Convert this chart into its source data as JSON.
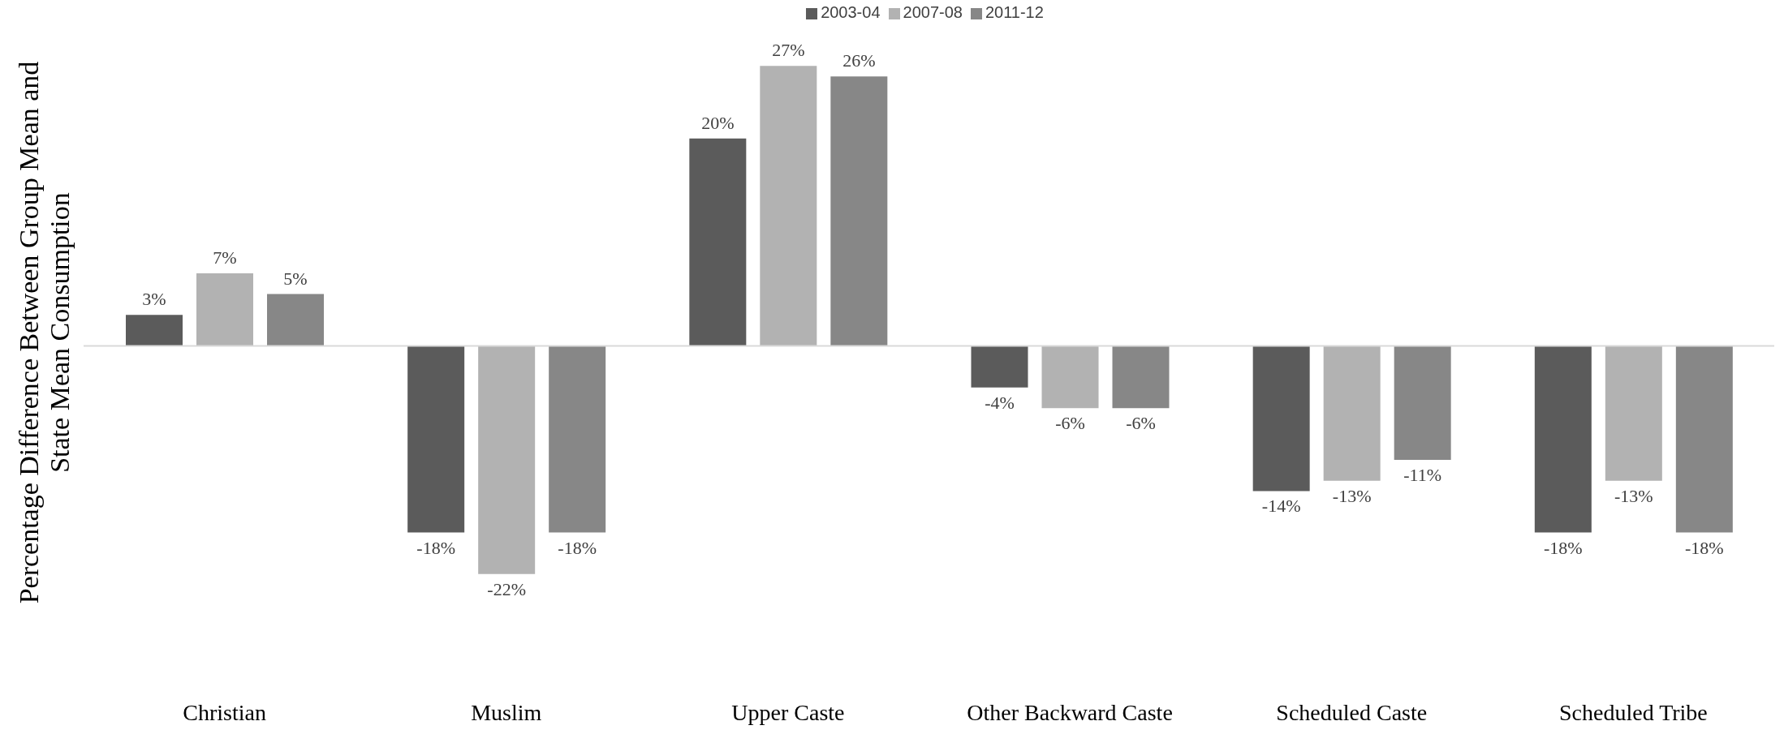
{
  "chart_data": {
    "type": "bar",
    "ylabel": "Percentage Difference Between Group Mean and State Mean Consumption",
    "categories": [
      "Christian",
      "Muslim",
      "Upper Caste",
      "Other Backward Caste",
      "Scheduled Caste",
      "Scheduled Tribe"
    ],
    "legend": "top",
    "series": [
      {
        "name": "2003-04",
        "color": "#5b5b5b",
        "values": [
          3,
          -18,
          20,
          -4,
          -14,
          -18
        ],
        "value_labels": [
          "3%",
          "-18%",
          "20%",
          "-4%",
          "-14%",
          "-18%"
        ]
      },
      {
        "name": "2007-08",
        "color": "#b2b2b2",
        "values": [
          7,
          -22,
          27,
          -6,
          -13,
          -13
        ],
        "value_labels": [
          "7%",
          "-22%",
          "27%",
          "-6%",
          "-13%",
          "-13%"
        ]
      },
      {
        "name": "2011-12",
        "color": "#878787",
        "values": [
          5,
          -18,
          26,
          -6,
          -11,
          -18
        ],
        "value_labels": [
          "5%",
          "-18%",
          "26%",
          "-6%",
          "-11%",
          "-18%"
        ]
      }
    ]
  }
}
